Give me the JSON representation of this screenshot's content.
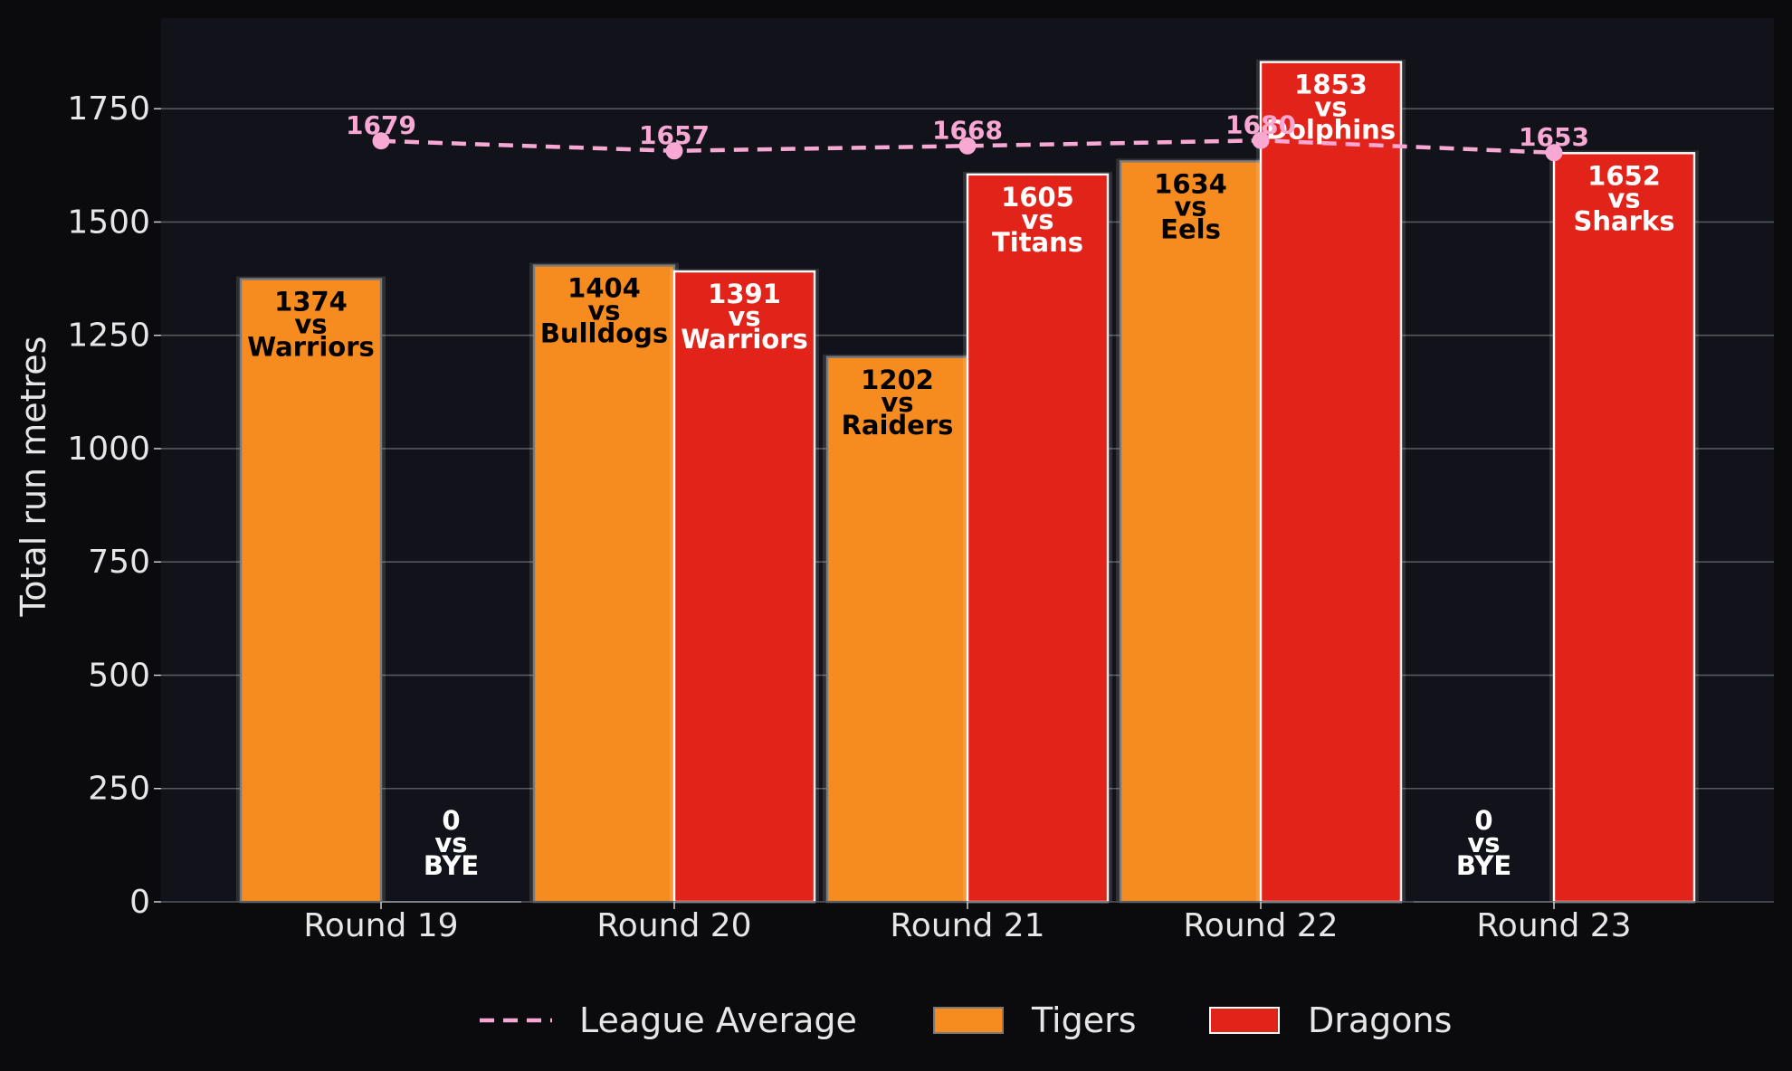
{
  "chart_data": {
    "type": "bar",
    "categories": [
      "Round 19",
      "Round 20",
      "Round 21",
      "Round 22",
      "Round 23"
    ],
    "ylabel": "Total run metres",
    "ylim": [
      0,
      1950
    ],
    "yticks": [
      0,
      250,
      500,
      750,
      1000,
      1250,
      1500,
      1750
    ],
    "grid": true,
    "legend_position": "bottom",
    "series": [
      {
        "name": "Tigers",
        "color": "#f68c1f",
        "values": [
          1374,
          1404,
          1202,
          1634,
          0
        ],
        "opponents": [
          "Warriors",
          "Bulldogs",
          "Raiders",
          "Eels",
          "BYE"
        ],
        "labels": [
          "1374",
          "1404",
          "1202",
          "1634",
          "0"
        ]
      },
      {
        "name": "Dragons",
        "color": "#e2231a",
        "values": [
          0,
          1391,
          1605,
          1853,
          1652
        ],
        "opponents": [
          "BYE",
          "Warriors",
          "Titans",
          "Dolphins",
          "Sharks"
        ],
        "labels": [
          "0",
          "1391",
          "1605",
          "1853",
          "1652"
        ]
      }
    ],
    "vs_text": "vs",
    "league_average": {
      "name": "League Average",
      "color": "#f7a8d3",
      "values": [
        1679,
        1657,
        1668,
        1680,
        1653
      ],
      "labels": [
        "1679",
        "1657",
        "1668",
        "1680",
        "1653"
      ]
    }
  }
}
